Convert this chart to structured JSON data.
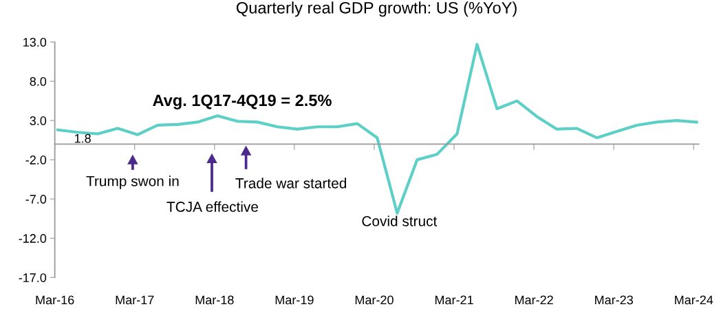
{
  "chart_data": {
    "type": "line",
    "title": "Quarterly real GDP growth: US (%YoY)",
    "categories": [
      "Mar-16",
      null,
      null,
      null,
      "Mar-17",
      null,
      null,
      null,
      "Mar-18",
      null,
      null,
      null,
      "Mar-19",
      null,
      null,
      null,
      "Mar-20",
      null,
      null,
      null,
      "Mar-21",
      null,
      null,
      null,
      "Mar-22",
      null,
      null,
      null,
      "Mar-23",
      null,
      null,
      null,
      "Mar-24"
    ],
    "series": [
      {
        "color": "#5ccfc7",
        "values": [
          1.8,
          1.5,
          1.3,
          2.0,
          1.2,
          2.4,
          2.5,
          2.8,
          3.6,
          2.9,
          2.8,
          2.2,
          1.9,
          2.2,
          2.2,
          2.6,
          0.8,
          -8.8,
          -2.0,
          -1.3,
          1.3,
          12.7,
          4.5,
          5.5,
          3.5,
          1.9,
          2.0,
          0.8,
          1.6,
          2.4,
          2.8,
          3.0,
          2.8
        ],
        "value_labels": [
          "1.8",
          null,
          null,
          null,
          null,
          null,
          null,
          null,
          null,
          null,
          null,
          null,
          null,
          null,
          null,
          null,
          null,
          null,
          null,
          null,
          null,
          null,
          null,
          null,
          null,
          null,
          null,
          null,
          null,
          null,
          null,
          null,
          null
        ]
      }
    ],
    "ylim": [
      -17,
      13
    ],
    "yticks": [
      {
        "value": -17,
        "label": "-17.0"
      },
      {
        "value": -12,
        "label": "-12.0"
      },
      {
        "value": -7,
        "label": "-7.0"
      },
      {
        "value": -2,
        "label": "-2.0"
      },
      {
        "value": 3,
        "label": "3.0"
      },
      {
        "value": 8,
        "label": "8.0"
      },
      {
        "value": 13,
        "label": "13.0"
      }
    ],
    "annotations": [
      "Avg. 1Q17-4Q19 = 2.5%",
      "Trump swon in",
      "TCJA effective",
      "Trade war started",
      "Covid struct"
    ],
    "grid": false,
    "legend": false,
    "marker": "none",
    "line_style": "solid"
  }
}
